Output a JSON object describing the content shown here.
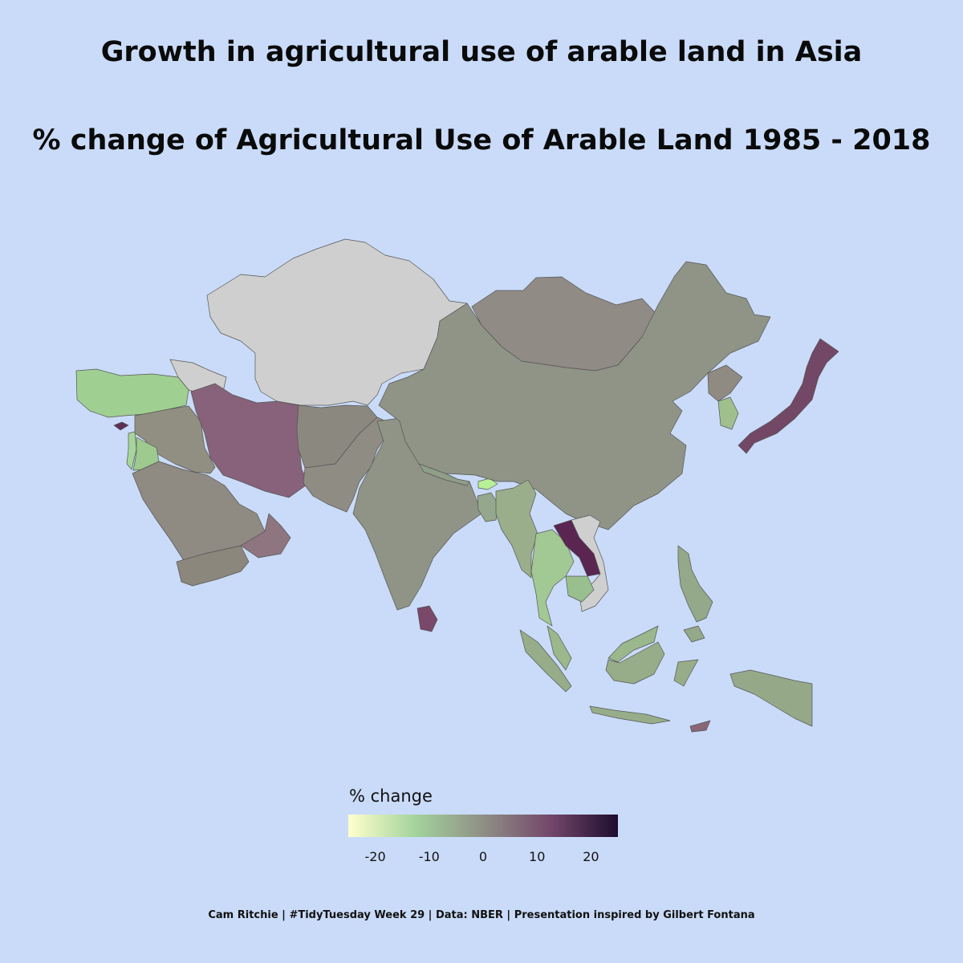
{
  "title": "Growth in agricultural use of arable land in Asia",
  "subtitle": "% change of Agricultural Use of Arable Land 1985 - 2018",
  "legend": {
    "title": "% change",
    "ticks": [
      "-20",
      "-10",
      "0",
      "10",
      "20"
    ],
    "range": [
      -25,
      25
    ],
    "colors": [
      "#ffffcc",
      "#a3d39c",
      "#8f8f85",
      "#74476b",
      "#1c0d2e"
    ]
  },
  "colors": {
    "background": "#c9dbf8",
    "no_data": "#cfcfcf",
    "border": "#555555"
  },
  "caption": "Cam Ritchie | #TidyTuesday Week 29 | Data: NBER | Presentation inspired by Gilbert Fontana",
  "regions": [
    {
      "name": "Kazakhstan & Central Asia",
      "fill": "#cfcfcf"
    },
    {
      "name": "Georgia / Caucasus",
      "fill": "#cfcfcf"
    },
    {
      "name": "Turkey",
      "fill": "#9fd092"
    },
    {
      "name": "Cyprus",
      "fill": "#5e2f57"
    },
    {
      "name": "Syria / Iraq",
      "fill": "#908f82"
    },
    {
      "name": "Israel / Lebanon",
      "fill": "#a6d59a"
    },
    {
      "name": "Jordan",
      "fill": "#9fca8f"
    },
    {
      "name": "Saudi Arabia",
      "fill": "#8f8a82"
    },
    {
      "name": "Yemen",
      "fill": "#8b877d"
    },
    {
      "name": "Oman",
      "fill": "#8e7580"
    },
    {
      "name": "Iran",
      "fill": "#87627a"
    },
    {
      "name": "Afghanistan",
      "fill": "#8b8880"
    },
    {
      "name": "Pakistan",
      "fill": "#8f8c84"
    },
    {
      "name": "India",
      "fill": "#909486"
    },
    {
      "name": "Sri Lanka",
      "fill": "#7a4868"
    },
    {
      "name": "Nepal",
      "fill": "#909e88"
    },
    {
      "name": "Bhutan",
      "fill": "#b8f098"
    },
    {
      "name": "Bangladesh",
      "fill": "#95a78d"
    },
    {
      "name": "Mongolia",
      "fill": "#918b86"
    },
    {
      "name": "China",
      "fill": "#8f9486"
    },
    {
      "name": "North Korea",
      "fill": "#8f8a82"
    },
    {
      "name": "South Korea",
      "fill": "#9fc08d"
    },
    {
      "name": "Japan",
      "fill": "#734766"
    },
    {
      "name": "Myanmar",
      "fill": "#9aae8c"
    },
    {
      "name": "Thailand",
      "fill": "#a2c893"
    },
    {
      "name": "Laos",
      "fill": "#5a2551"
    },
    {
      "name": "Vietnam",
      "fill": "#cfcfcf"
    },
    {
      "name": "Cambodia",
      "fill": "#9abf8e"
    },
    {
      "name": "Malaysia",
      "fill": "#9bb78c"
    },
    {
      "name": "Indonesia",
      "fill": "#97ad89"
    },
    {
      "name": "Philippines",
      "fill": "#94a88a"
    },
    {
      "name": "Papua",
      "fill": "#95a989"
    },
    {
      "name": "Timor-Leste",
      "fill": "#8a6677"
    }
  ]
}
